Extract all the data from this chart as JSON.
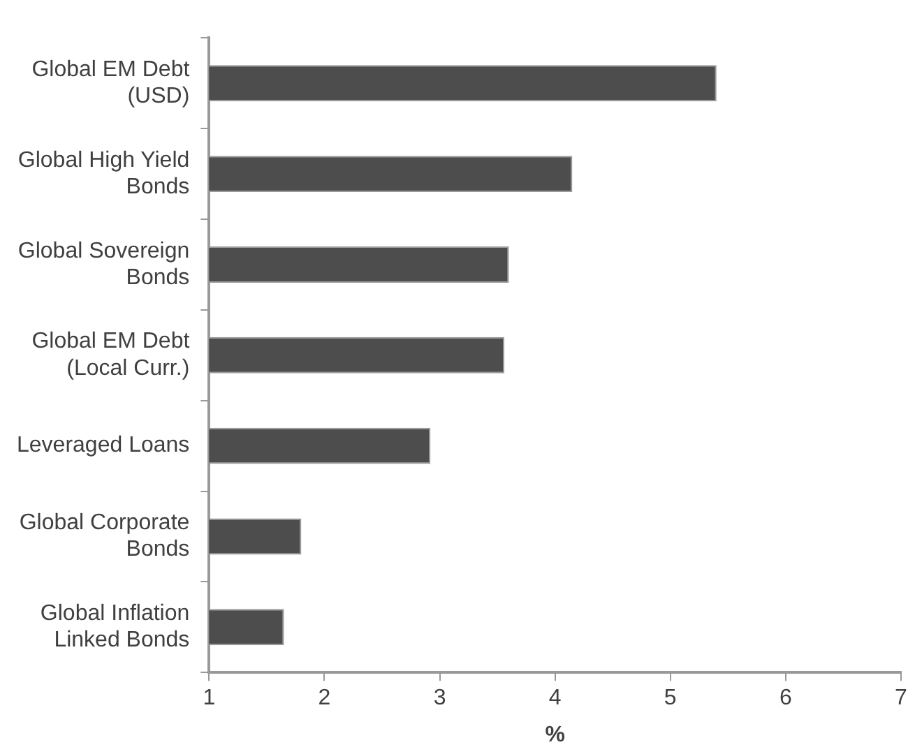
{
  "chart_data": {
    "type": "bar",
    "orientation": "horizontal",
    "xlabel": "%",
    "categories": [
      "Global EM Debt (USD)",
      "Global High Yield Bonds",
      "Global Sovereign Bonds",
      "Global EM Debt (Local Curr.)",
      "Leveraged Loans",
      "Global Corporate Bonds",
      "Global Inflation Linked Bonds"
    ],
    "values": [
      5.4,
      4.15,
      3.6,
      3.56,
      2.92,
      1.8,
      1.65
    ],
    "color": "#4d4d4d",
    "xlim": [
      1,
      7
    ],
    "xticks": [
      1,
      2,
      3,
      4,
      5,
      6,
      7
    ],
    "grid": false,
    "legend": false
  }
}
